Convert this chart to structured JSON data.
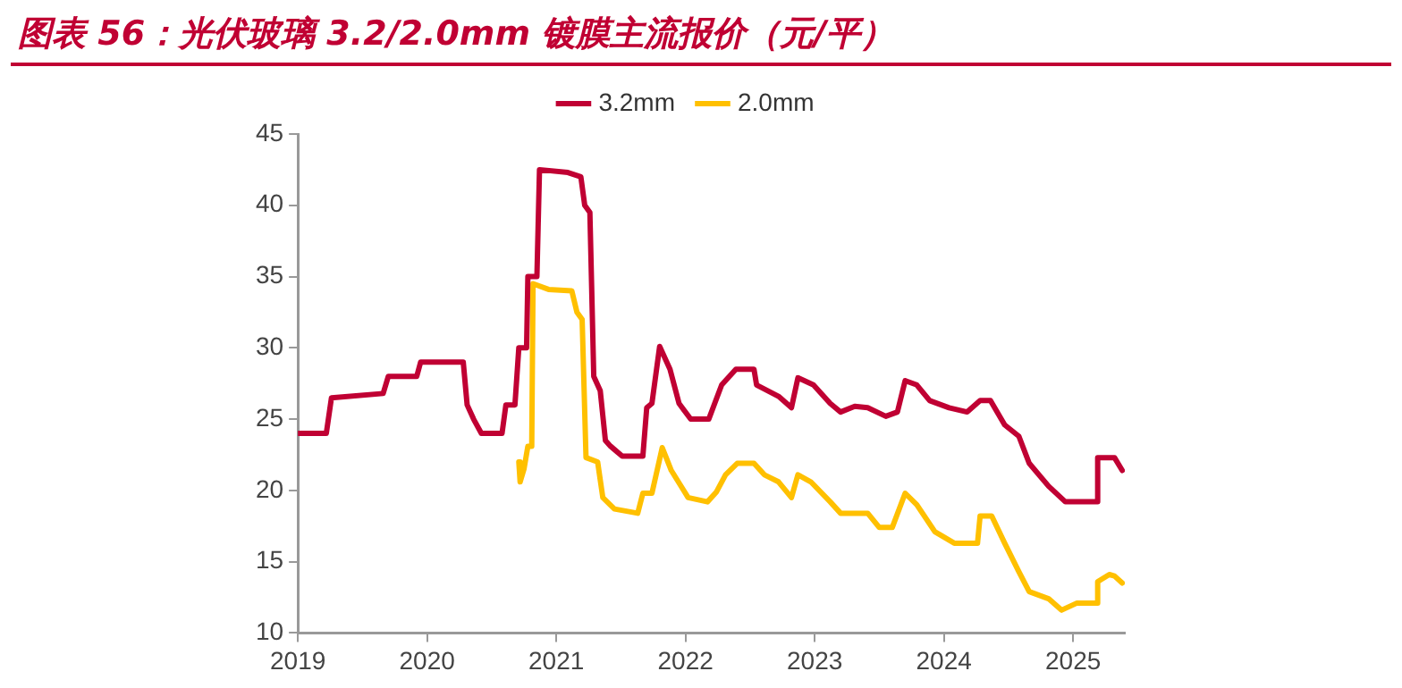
{
  "chart_data": {
    "type": "line",
    "title": "图表 56：光伏玻璃 3.2/2.0mm 镀膜主流报价（元/平）",
    "xlim": [
      2019,
      2025.4
    ],
    "xticks": [
      2019,
      2020,
      2021,
      2022,
      2023,
      2024,
      2025
    ],
    "ylim": [
      10,
      45
    ],
    "yticks": [
      10,
      15,
      20,
      25,
      30,
      35,
      40,
      45
    ],
    "grid": false,
    "legend": "top",
    "marker": "none",
    "line_style": "solid",
    "series": [
      {
        "name": "3.2mm",
        "color": "#c00033",
        "x": [
          2019.0,
          2019.22,
          2019.26,
          2019.66,
          2019.7,
          2019.92,
          2019.95,
          2020.28,
          2020.31,
          2020.36,
          2020.42,
          2020.58,
          2020.61,
          2020.68,
          2020.71,
          2020.77,
          2020.78,
          2020.85,
          2020.87,
          2021.09,
          2021.19,
          2021.22,
          2021.26,
          2021.29,
          2021.34,
          2021.38,
          2021.42,
          2021.51,
          2021.67,
          2021.7,
          2021.74,
          2021.8,
          2021.88,
          2021.95,
          2022.04,
          2022.18,
          2022.28,
          2022.39,
          2022.53,
          2022.55,
          2022.72,
          2022.82,
          2022.87,
          2022.99,
          2023.12,
          2023.2,
          2023.31,
          2023.41,
          2023.55,
          2023.64,
          2023.7,
          2023.79,
          2023.89,
          2024.04,
          2024.18,
          2024.28,
          2024.36,
          2024.47,
          2024.58,
          2024.66,
          2024.81,
          2024.94,
          2025.18,
          2025.19,
          2025.32,
          2025.38
        ],
        "values": [
          24,
          24,
          26.5,
          26.8,
          28,
          28,
          29,
          29,
          26,
          25,
          24,
          24,
          26,
          26,
          30,
          30,
          35,
          35,
          42.5,
          42.3,
          42,
          40,
          39.5,
          28,
          27,
          23.5,
          23.1,
          22.4,
          22.4,
          25.8,
          26.1,
          30.1,
          28.5,
          26.1,
          25,
          25,
          27.4,
          28.5,
          28.5,
          27.4,
          26.6,
          25.8,
          27.9,
          27.4,
          26.1,
          25.5,
          25.9,
          25.8,
          25.2,
          25.5,
          27.7,
          27.4,
          26.3,
          25.8,
          25.5,
          26.3,
          26.3,
          24.6,
          23.8,
          21.9,
          20.3,
          19.2,
          19.2,
          22.3,
          22.3,
          21.4
        ]
      },
      {
        "name": "2.0mm",
        "color": "#ffc000",
        "x": [
          2020.71,
          2020.72,
          2020.75,
          2020.78,
          2020.81,
          2020.82,
          2020.94,
          2021.12,
          2021.16,
          2021.2,
          2021.23,
          2021.32,
          2021.36,
          2021.45,
          2021.63,
          2021.67,
          2021.74,
          2021.82,
          2021.89,
          2022.02,
          2022.17,
          2022.24,
          2022.31,
          2022.4,
          2022.53,
          2022.61,
          2022.72,
          2022.82,
          2022.87,
          2022.97,
          2023.12,
          2023.2,
          2023.41,
          2023.5,
          2023.6,
          2023.7,
          2023.79,
          2023.93,
          2024.08,
          2024.26,
          2024.28,
          2024.37,
          2024.47,
          2024.58,
          2024.66,
          2024.81,
          2024.91,
          2025.03,
          2025.18,
          2025.19,
          2025.28,
          2025.32,
          2025.38
        ],
        "values": [
          22.0,
          20.6,
          21.5,
          23.1,
          23.1,
          34.5,
          34.1,
          34,
          32.5,
          32,
          22.3,
          22,
          19.5,
          18.7,
          18.4,
          19.8,
          19.8,
          23.0,
          21.4,
          19.5,
          19.2,
          19.9,
          21.1,
          21.9,
          21.9,
          21.1,
          20.6,
          19.5,
          21.1,
          20.6,
          19.2,
          18.4,
          18.4,
          17.4,
          17.4,
          19.8,
          19.0,
          17.1,
          16.3,
          16.3,
          18.2,
          18.2,
          16.3,
          14.3,
          12.9,
          12.4,
          11.6,
          12.1,
          12.1,
          13.6,
          14.1,
          14.0,
          13.5
        ]
      }
    ]
  }
}
